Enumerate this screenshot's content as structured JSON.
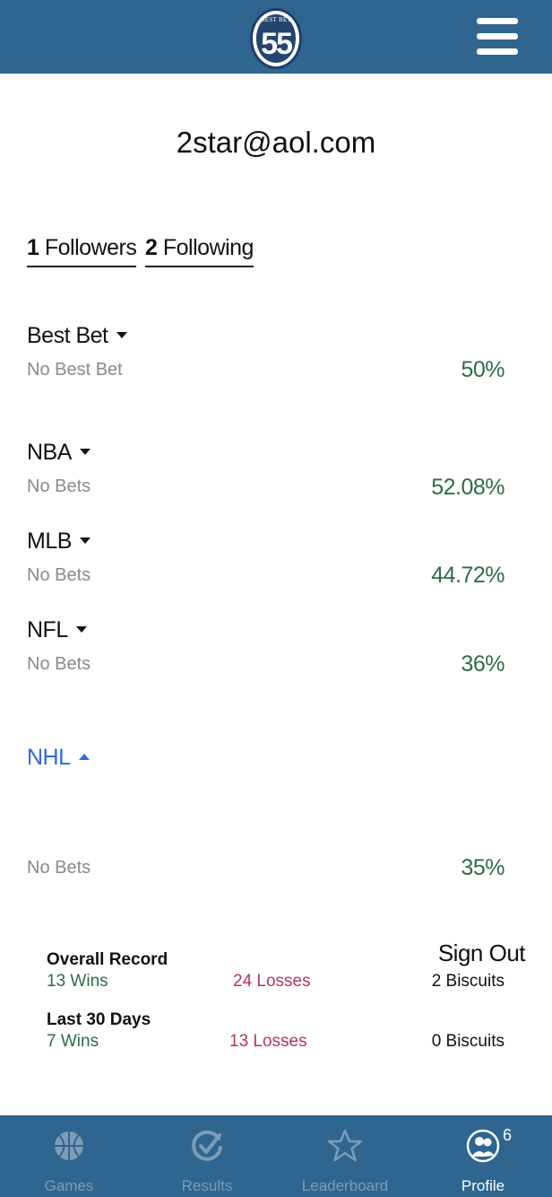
{
  "header": {
    "logo_text": "BEST BET",
    "logo_number": "55"
  },
  "profile": {
    "email": "2star@aol.com",
    "followers_count": "1",
    "followers_label": "Followers",
    "following_count": "2",
    "following_label": "Following"
  },
  "sports": [
    {
      "name": "Best Bet",
      "sub": "No Best Bet",
      "pct": "50%",
      "expanded": false
    },
    {
      "name": "NBA",
      "sub": "No Bets",
      "pct": "52.08%",
      "expanded": false
    },
    {
      "name": "MLB",
      "sub": "No Bets",
      "pct": "44.72%",
      "expanded": false
    },
    {
      "name": "NFL",
      "sub": "No Bets",
      "pct": "36%",
      "expanded": false
    },
    {
      "name": "NHL",
      "sub": "No Bets",
      "pct": "35%",
      "expanded": true
    }
  ],
  "records": {
    "sign_out": "Sign Out",
    "overall": {
      "title": "Overall Record",
      "wins": "13 Wins",
      "losses": "24 Losses",
      "biscuits": "2 Biscuits"
    },
    "last30": {
      "title": "Last 30 Days",
      "wins": "7 Wins",
      "losses": "13 Losses",
      "biscuits": "0 Biscuits"
    }
  },
  "tabs": [
    {
      "label": "Games",
      "icon": "basketball-icon",
      "active": false
    },
    {
      "label": "Results",
      "icon": "check-circle-icon",
      "active": false
    },
    {
      "label": "Leaderboard",
      "icon": "star-icon",
      "active": false
    },
    {
      "label": "Profile",
      "icon": "profile-group-icon",
      "active": true,
      "badge": "6"
    }
  ],
  "colors": {
    "header_bg": "#2e6690",
    "pct_green": "#2d6b48",
    "loss_red": "#b3365a",
    "active_blue": "#2f6bd8",
    "tab_inactive": "#7e9cb6"
  }
}
